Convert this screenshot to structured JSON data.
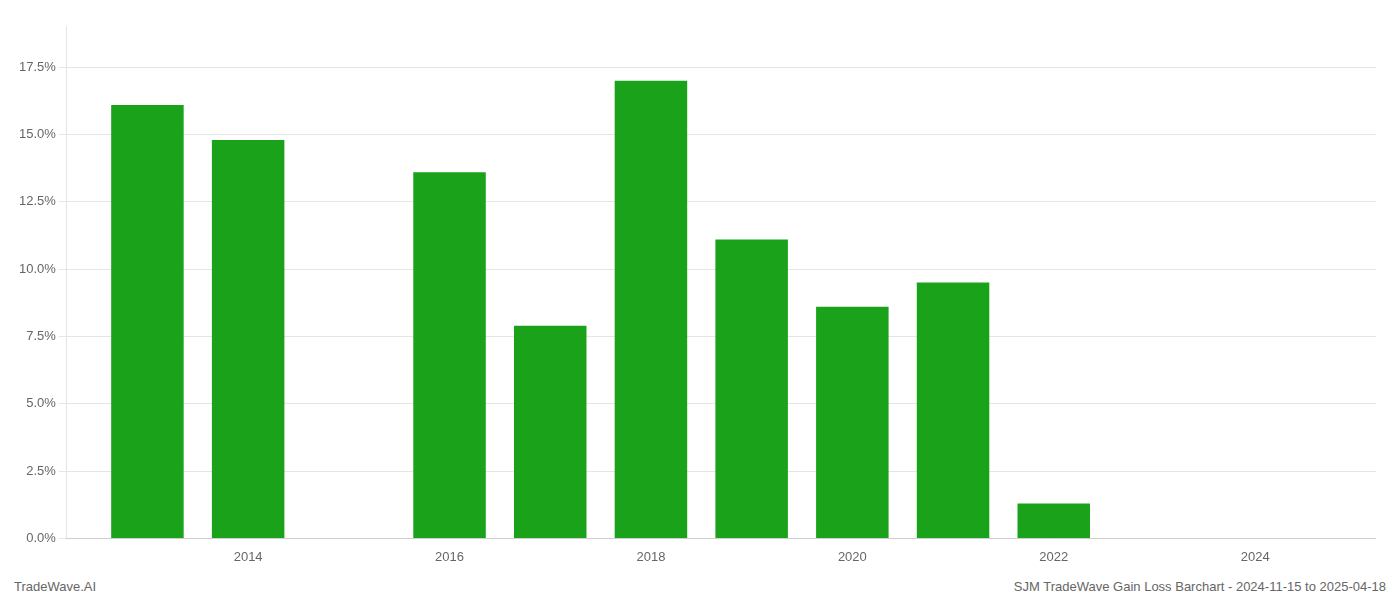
{
  "chart_data": {
    "type": "bar",
    "x": [
      2013,
      2014,
      2016,
      2017,
      2018,
      2019,
      2020,
      2021,
      2022,
      2023
    ],
    "values": [
      0.161,
      0.148,
      0.136,
      0.079,
      0.17,
      0.111,
      0.086,
      0.095,
      0.013,
      0.0
    ],
    "color": "#1aa31a",
    "xlim": [
      2012.2,
      2025.2
    ],
    "xticks": [
      2014,
      2016,
      2018,
      2020,
      2022,
      2024
    ],
    "ylim": [
      0.0,
      0.19
    ],
    "yticks": [
      {
        "value": 0.0,
        "label": "0.0%"
      },
      {
        "value": 0.025,
        "label": "2.5%"
      },
      {
        "value": 0.05,
        "label": "5.0%"
      },
      {
        "value": 0.075,
        "label": "7.5%"
      },
      {
        "value": 0.1,
        "label": "10.0%"
      },
      {
        "value": 0.125,
        "label": "12.5%"
      },
      {
        "value": 0.15,
        "label": "15.0%"
      },
      {
        "value": 0.175,
        "label": "17.5%"
      }
    ],
    "grid": true,
    "annotations": [
      "TradeWave.AI",
      "SJM TradeWave Gain Loss Barchart - 2024-11-15 to 2025-04-18"
    ]
  }
}
